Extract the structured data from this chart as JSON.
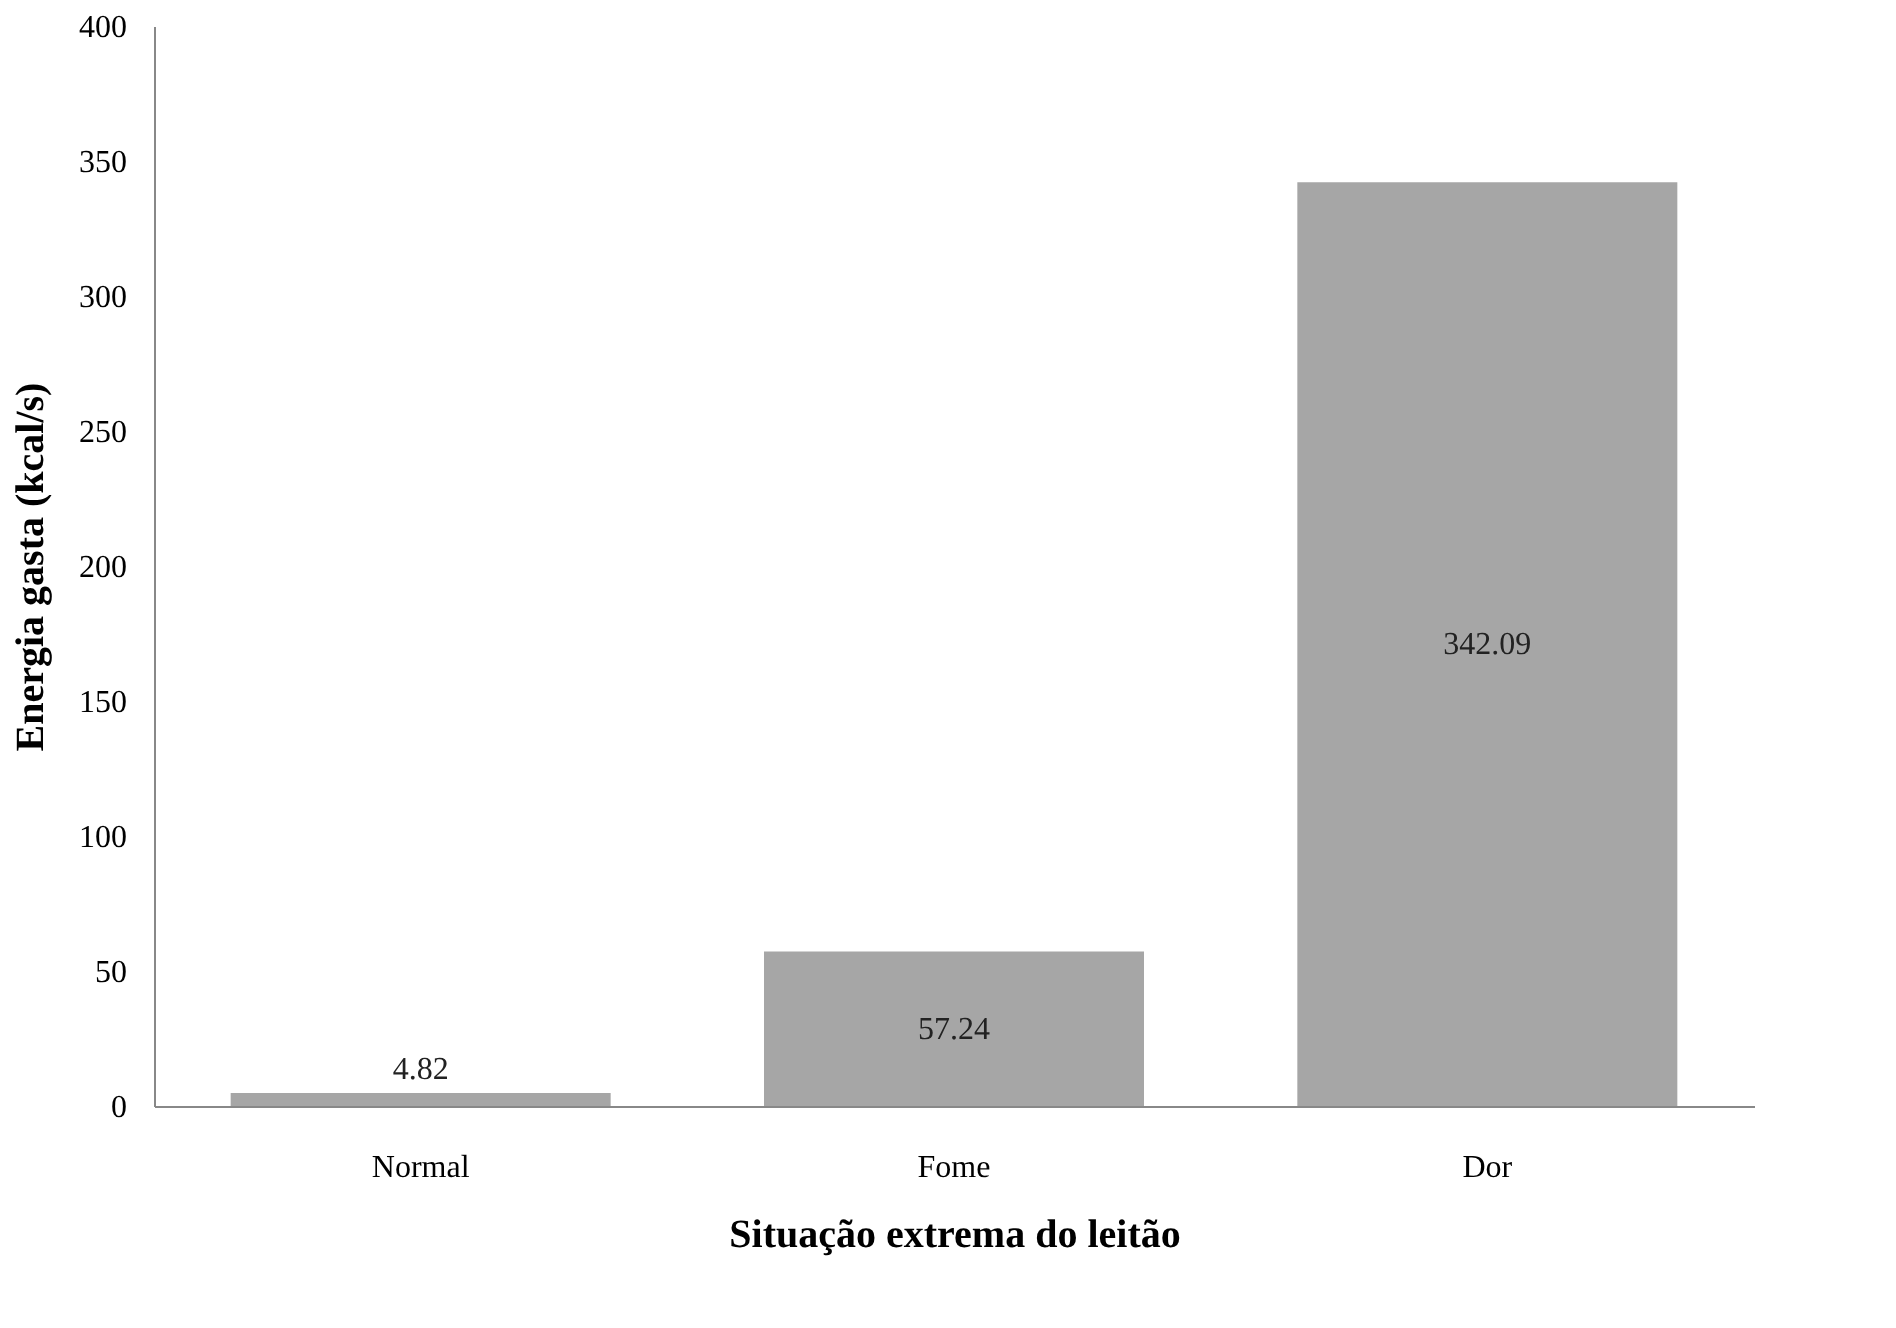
{
  "chart_data": {
    "type": "bar",
    "xlabel": "Situação extrema do leitão",
    "ylabel": "Energia gasta (kcal/s)",
    "categories": [
      "Normal",
      "Fome",
      "Dor"
    ],
    "values": [
      4.82,
      57.24,
      342.09
    ],
    "color": "#a6a6a6",
    "ylim": [
      0,
      400
    ],
    "yticks": [
      0,
      50,
      100,
      150,
      200,
      250,
      300,
      350,
      400
    ],
    "grid": false,
    "data_labels": true
  }
}
